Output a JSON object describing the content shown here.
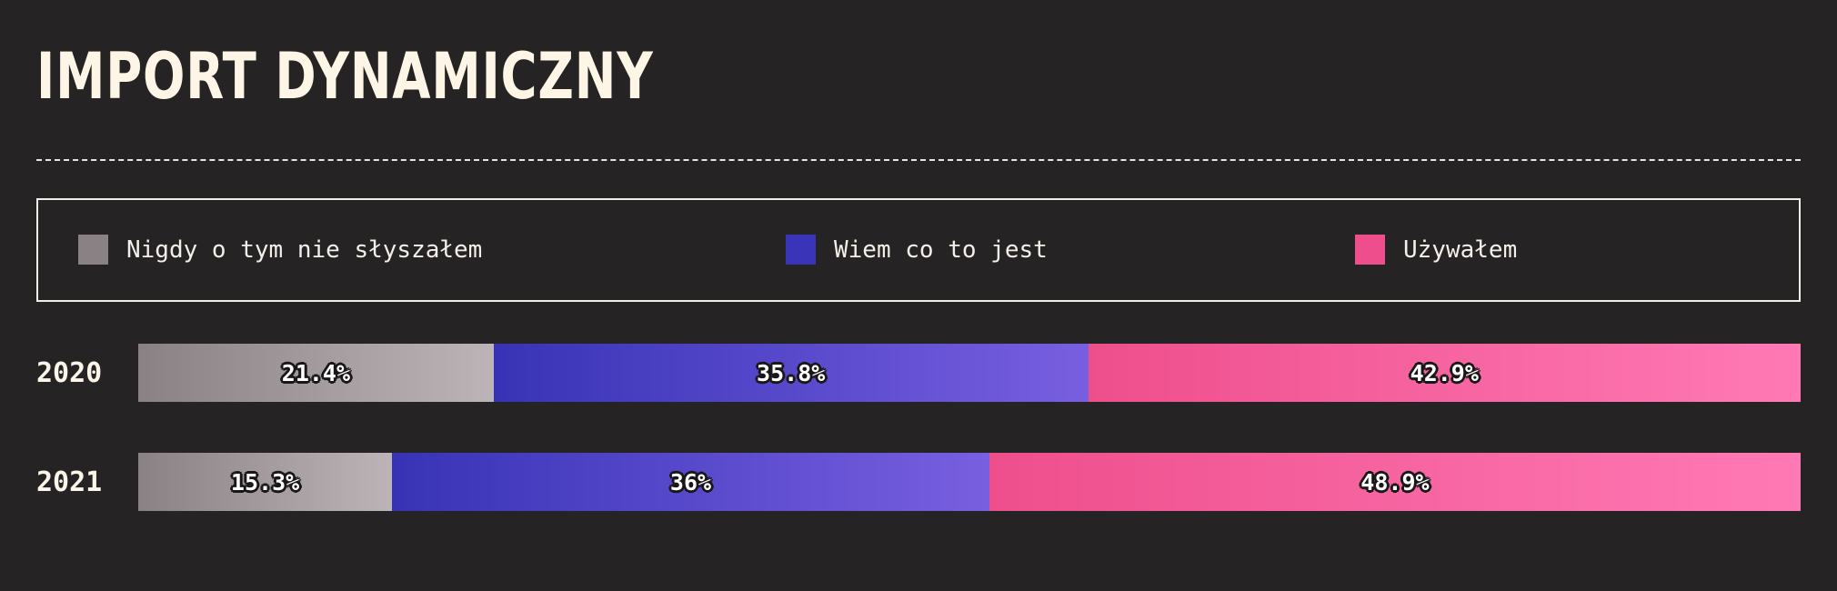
{
  "title": "IMPORT DYNAMICZNY",
  "legend": {
    "items": [
      {
        "label": "Nigdy o tym nie słyszałem",
        "color": "#8a8185"
      },
      {
        "label": "Wiem co to jest",
        "color": "#3a35b8"
      },
      {
        "label": "Używałem",
        "color": "#ee4f8c"
      }
    ]
  },
  "colors": {
    "background": "#262324",
    "grey_start": "#8a8185",
    "grey_end": "#bcb4b6",
    "blue_start": "#3833b6",
    "blue_end": "#785fe0",
    "pink_start": "#ee4f8c",
    "pink_end": "#ff79b5"
  },
  "chart_data": {
    "type": "bar",
    "orientation": "horizontal",
    "stacked": true,
    "title": "IMPORT DYNAMICZNY",
    "categories": [
      "2020",
      "2021"
    ],
    "series": [
      {
        "name": "Nigdy o tym nie słyszałem",
        "values": [
          21.4,
          15.3
        ],
        "labels": [
          "21.4%",
          "15.3%"
        ]
      },
      {
        "name": "Wiem co to jest",
        "values": [
          35.8,
          36
        ],
        "labels": [
          "35.8%",
          "36%"
        ]
      },
      {
        "name": "Używałem",
        "values": [
          42.9,
          48.9
        ],
        "labels": [
          "42.9%",
          "48.9%"
        ]
      }
    ],
    "legend_position": "top",
    "grid": false
  }
}
